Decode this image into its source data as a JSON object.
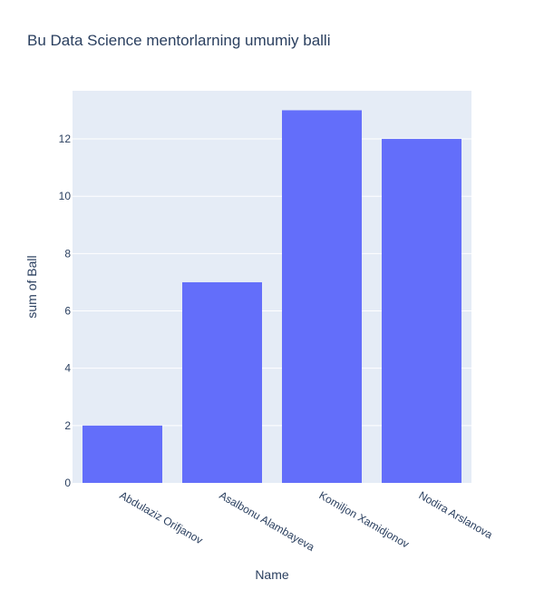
{
  "chart_data": {
    "type": "bar",
    "title": "Bu Data Science mentorlarning umumiy balli",
    "xlabel": "Name",
    "ylabel": "sum of Ball",
    "categories": [
      "Abdulaziz Orifjanov",
      "Asalbonu Alambayeva",
      "Komiljon Xamidjonov",
      "Nodira Arslanova"
    ],
    "values": [
      2,
      7,
      13,
      12
    ],
    "ylim": [
      0,
      13.68
    ],
    "yticks": [
      0,
      2,
      4,
      6,
      8,
      10,
      12
    ],
    "grid": true,
    "colors": {
      "bar": "#636efa",
      "plot_bg": "#e5ecf6",
      "grid": "#ffffff",
      "text": "#2a3f5f"
    }
  }
}
